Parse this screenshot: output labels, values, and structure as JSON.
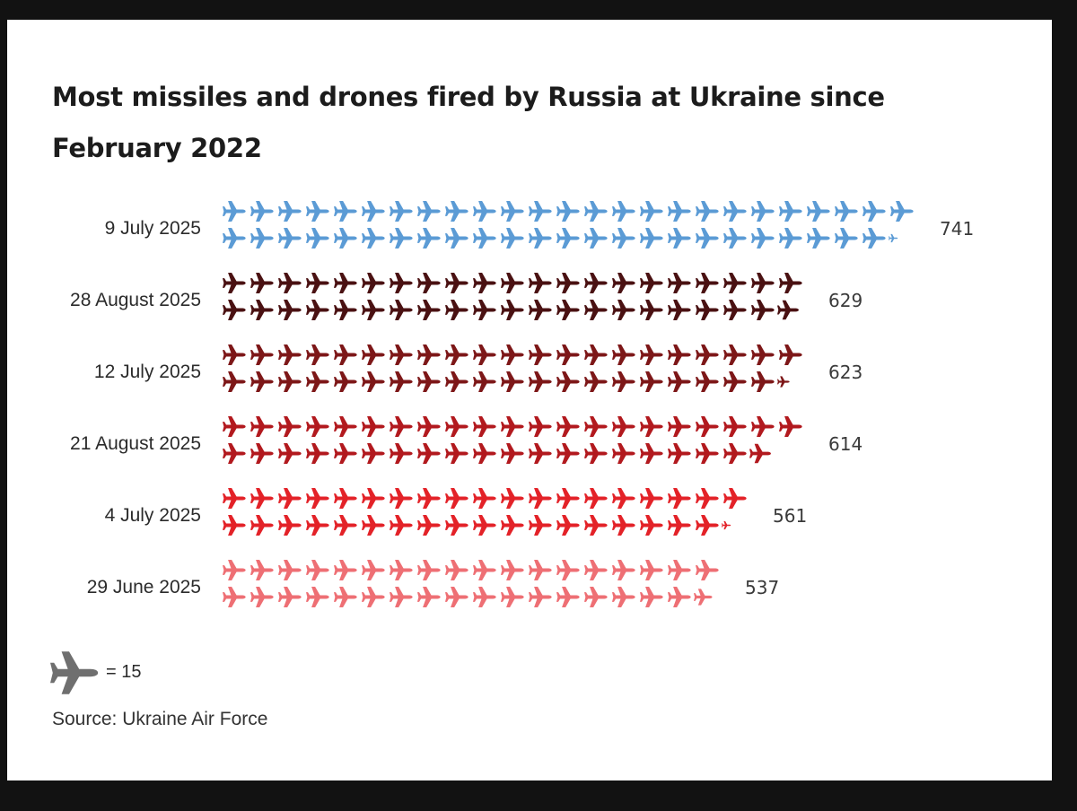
{
  "chart_data": {
    "type": "bar",
    "style": "pictogram",
    "title": "Most missiles and drones fired by Russia at Ukraine since February 2022",
    "unit_icon": "plane-icon",
    "unit_value": 15,
    "legend_text": "= 15",
    "categories": [
      "9 July 2025",
      "28 August 2025",
      "12 July 2025",
      "21 August 2025",
      "4 July 2025",
      "29 June 2025"
    ],
    "values": [
      741,
      629,
      623,
      614,
      561,
      537
    ],
    "value_labels": [
      "741",
      "629",
      "623",
      "614",
      "561",
      "537"
    ],
    "colors": [
      "#5b9bd5",
      "#4a1112",
      "#7d1718",
      "#b2191e",
      "#e32228",
      "#ee6f74"
    ],
    "legend_color": "#6f6f6f"
  },
  "source": "Source: Ukraine Air Force"
}
